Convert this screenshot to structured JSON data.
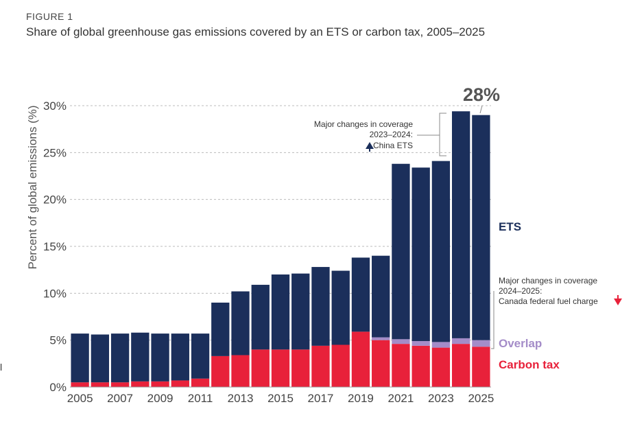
{
  "figure_label": "FIGURE 1",
  "cut_text": "l",
  "chart_data": {
    "type": "bar",
    "stacked": true,
    "title": "Share of global greenhouse gas emissions covered by an ETS or carbon tax, 2005–2025",
    "ylabel": "Percent of global emissions (%)",
    "xlabel": "",
    "ylim": [
      0,
      30
    ],
    "yticks": [
      0,
      5,
      10,
      15,
      20,
      25,
      30
    ],
    "ytick_labels": [
      "0%",
      "5%",
      "10%",
      "15%",
      "20%",
      "25%",
      "30%"
    ],
    "grid": "horizontal dashed",
    "categories": [
      "2005",
      "2006",
      "2007",
      "2008",
      "2009",
      "2010",
      "2011",
      "2012",
      "2013",
      "2014",
      "2015",
      "2016",
      "2017",
      "2018",
      "2019",
      "2020",
      "2021",
      "2022",
      "2023",
      "2024",
      "2025"
    ],
    "xtick_labels": [
      "2005",
      "2007",
      "2009",
      "2011",
      "2013",
      "2015",
      "2017",
      "2019",
      "2021",
      "2023",
      "2025"
    ],
    "series": [
      {
        "name": "Carbon tax",
        "color": "#e8213a",
        "values": [
          0.5,
          0.5,
          0.5,
          0.6,
          0.6,
          0.7,
          0.9,
          3.3,
          3.4,
          4.0,
          4.0,
          4.0,
          4.4,
          4.5,
          5.9,
          5.0,
          4.6,
          4.4,
          4.2,
          4.6,
          4.3
        ]
      },
      {
        "name": "Overlap",
        "color": "#a48cc8",
        "values": [
          0,
          0,
          0,
          0,
          0,
          0,
          0,
          0,
          0,
          0,
          0,
          0,
          0,
          0,
          0,
          0.3,
          0.5,
          0.5,
          0.6,
          0.6,
          0.7
        ]
      },
      {
        "name": "ETS",
        "color": "#1b2f5b",
        "values": [
          5.2,
          5.1,
          5.2,
          5.2,
          5.1,
          5.0,
          4.8,
          5.7,
          6.8,
          6.9,
          8.0,
          8.1,
          8.4,
          7.9,
          7.9,
          8.7,
          18.7,
          18.5,
          19.3,
          24.2,
          24.0
        ]
      }
    ],
    "annotations": {
      "headline_value": "28%",
      "upper_note": [
        "Major changes in coverage",
        "2023–2024:",
        "China ETS"
      ],
      "lower_note": [
        "Major changes in coverage",
        "2024–2025:",
        "Canada federal fuel charge"
      ]
    }
  }
}
